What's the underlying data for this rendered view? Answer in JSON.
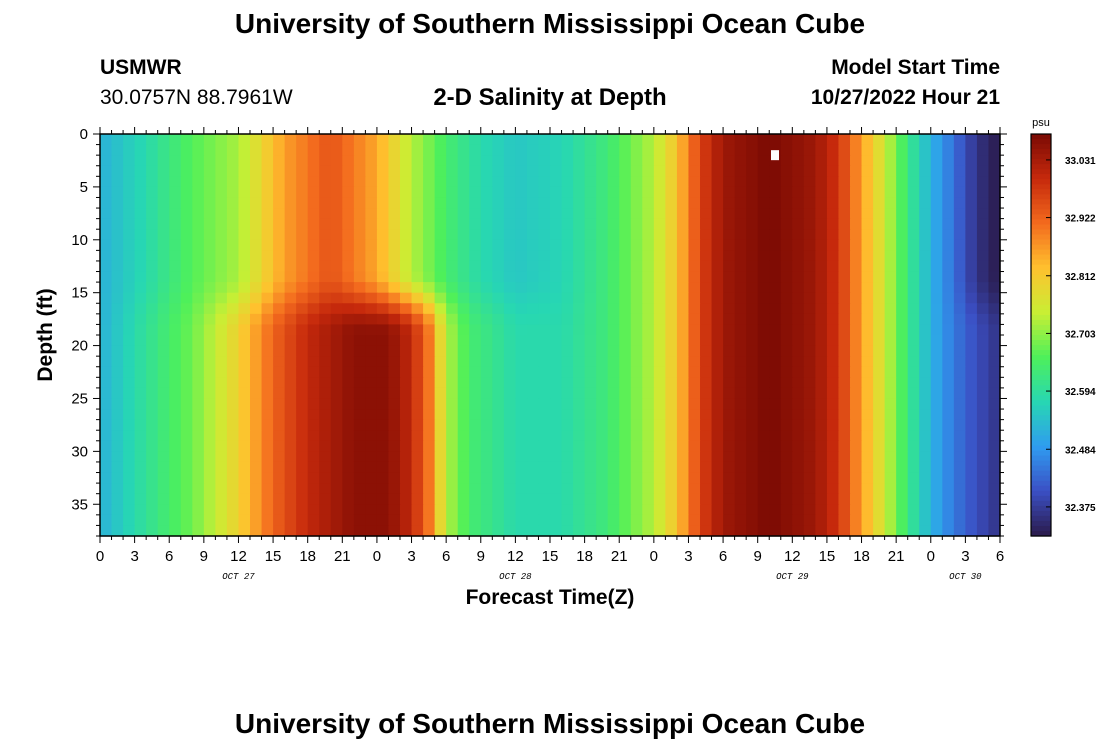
{
  "page": {
    "title_top": "University of Southern Mississippi Ocean Cube",
    "title_bottom": "University of Southern Mississippi Ocean Cube",
    "station_id": "USMWR",
    "station_coords": "30.0757N  88.7961W",
    "model_start_label": "Model Start Time",
    "model_start_value": "10/27/2022 Hour 21"
  },
  "colors": {
    "scale": [
      "#2a1a4a",
      "#3b4fc4",
      "#2f9cf0",
      "#27d7b3",
      "#4ef05a",
      "#c9ef34",
      "#ffc12e",
      "#f36a1e",
      "#c6290c",
      "#7a0a03"
    ]
  },
  "chart_data": {
    "type": "heatmap",
    "title": "2-D Salinity at Depth",
    "xlabel": "Forecast Time(Z)",
    "ylabel": "Depth (ft)",
    "colorbar_label": "psu",
    "x_range_hours": [
      0,
      78
    ],
    "ylim": [
      0,
      38
    ],
    "y_inverted": true,
    "x_ticks": [
      {
        "hour": 0,
        "label": "0"
      },
      {
        "hour": 3,
        "label": "3"
      },
      {
        "hour": 6,
        "label": "6"
      },
      {
        "hour": 9,
        "label": "9"
      },
      {
        "hour": 12,
        "label": "12"
      },
      {
        "hour": 15,
        "label": "15"
      },
      {
        "hour": 18,
        "label": "18"
      },
      {
        "hour": 21,
        "label": "21"
      },
      {
        "hour": 24,
        "label": "0"
      },
      {
        "hour": 27,
        "label": "3"
      },
      {
        "hour": 30,
        "label": "6"
      },
      {
        "hour": 33,
        "label": "9"
      },
      {
        "hour": 36,
        "label": "12"
      },
      {
        "hour": 39,
        "label": "15"
      },
      {
        "hour": 42,
        "label": "18"
      },
      {
        "hour": 45,
        "label": "21"
      },
      {
        "hour": 48,
        "label": "0"
      },
      {
        "hour": 51,
        "label": "3"
      },
      {
        "hour": 54,
        "label": "6"
      },
      {
        "hour": 57,
        "label": "9"
      },
      {
        "hour": 60,
        "label": "12"
      },
      {
        "hour": 63,
        "label": "15"
      },
      {
        "hour": 66,
        "label": "18"
      },
      {
        "hour": 69,
        "label": "21"
      },
      {
        "hour": 72,
        "label": "0"
      },
      {
        "hour": 75,
        "label": "3"
      },
      {
        "hour": 78,
        "label": "6"
      }
    ],
    "date_labels": [
      {
        "hour": 12,
        "label": "OCT 27"
      },
      {
        "hour": 36,
        "label": "OCT 28"
      },
      {
        "hour": 60,
        "label": "OCT 29"
      },
      {
        "hour": 75,
        "label": "OCT 30"
      }
    ],
    "y_ticks": [
      0,
      5,
      10,
      15,
      20,
      25,
      30,
      35
    ],
    "colorbar_ticks": [
      "33.031",
      "32.922",
      "32.812",
      "32.703",
      "32.594",
      "32.484",
      "32.375"
    ],
    "value_range": [
      32.32,
      33.08
    ],
    "marker": {
      "hour": 58.5,
      "depth": 2,
      "color": "#ffffff"
    },
    "surface_profile": [
      {
        "hour": 0,
        "value": 32.52
      },
      {
        "hour": 4,
        "value": 32.58
      },
      {
        "hour": 8,
        "value": 32.66
      },
      {
        "hour": 12,
        "value": 32.72
      },
      {
        "hour": 16,
        "value": 32.86
      },
      {
        "hour": 20,
        "value": 32.94
      },
      {
        "hour": 24,
        "value": 32.85
      },
      {
        "hour": 27,
        "value": 32.73
      },
      {
        "hour": 30,
        "value": 32.64
      },
      {
        "hour": 33,
        "value": 32.58
      },
      {
        "hour": 36,
        "value": 32.55
      },
      {
        "hour": 40,
        "value": 32.57
      },
      {
        "hour": 44,
        "value": 32.63
      },
      {
        "hour": 48,
        "value": 32.73
      },
      {
        "hour": 50,
        "value": 32.82
      },
      {
        "hour": 52,
        "value": 32.96
      },
      {
        "hour": 54,
        "value": 33.04
      },
      {
        "hour": 58,
        "value": 33.08
      },
      {
        "hour": 62,
        "value": 33.04
      },
      {
        "hour": 64,
        "value": 32.98
      },
      {
        "hour": 66,
        "value": 32.86
      },
      {
        "hour": 68,
        "value": 32.75
      },
      {
        "hour": 70,
        "value": 32.62
      },
      {
        "hour": 72,
        "value": 32.52
      },
      {
        "hour": 74,
        "value": 32.44
      },
      {
        "hour": 76,
        "value": 32.36
      },
      {
        "hour": 78,
        "value": 32.32
      }
    ],
    "deep_profile": [
      {
        "hour": 0,
        "value": 32.52
      },
      {
        "hour": 4,
        "value": 32.6
      },
      {
        "hour": 8,
        "value": 32.68
      },
      {
        "hour": 12,
        "value": 32.8
      },
      {
        "hour": 15,
        "value": 32.92
      },
      {
        "hour": 18,
        "value": 33.0
      },
      {
        "hour": 22,
        "value": 33.06
      },
      {
        "hour": 25,
        "value": 33.06
      },
      {
        "hour": 27,
        "value": 33.0
      },
      {
        "hour": 28.5,
        "value": 32.9
      },
      {
        "hour": 30,
        "value": 32.73
      },
      {
        "hour": 32,
        "value": 32.64
      },
      {
        "hour": 36,
        "value": 32.58
      },
      {
        "hour": 40,
        "value": 32.58
      },
      {
        "hour": 44,
        "value": 32.63
      },
      {
        "hour": 48,
        "value": 32.73
      },
      {
        "hour": 50,
        "value": 32.82
      },
      {
        "hour": 52,
        "value": 32.96
      },
      {
        "hour": 54,
        "value": 33.04
      },
      {
        "hour": 58,
        "value": 33.08
      },
      {
        "hour": 62,
        "value": 33.04
      },
      {
        "hour": 64,
        "value": 32.98
      },
      {
        "hour": 66,
        "value": 32.86
      },
      {
        "hour": 68,
        "value": 32.75
      },
      {
        "hour": 70,
        "value": 32.62
      },
      {
        "hour": 72,
        "value": 32.52
      },
      {
        "hour": 74,
        "value": 32.45
      },
      {
        "hour": 76,
        "value": 32.4
      },
      {
        "hour": 78,
        "value": 32.36
      }
    ],
    "transition_depth_ft": [
      13,
      19
    ]
  }
}
